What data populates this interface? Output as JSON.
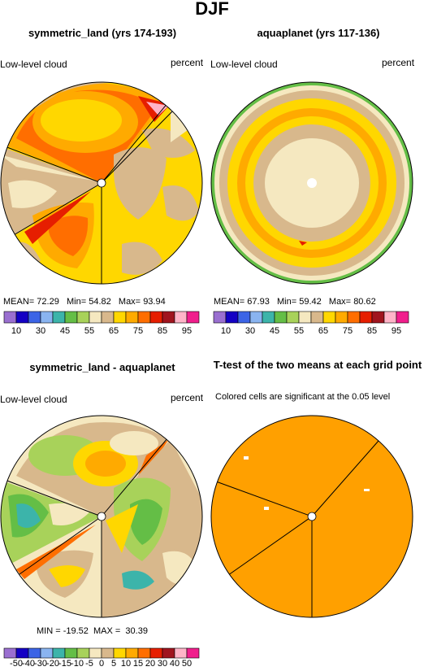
{
  "figure": {
    "title": "DJF"
  },
  "panels": [
    {
      "title": "symmetric_land (yrs 174-193)",
      "left_label": "Low-level cloud",
      "right_label": "percent",
      "stats": {
        "mean_label": "MEAN=",
        "mean": "72.29",
        "min_label": "Min=",
        "min": "54.82",
        "max_label": "Max=",
        "max": "93.94"
      }
    },
    {
      "title": "aquaplanet (yrs 117-136)",
      "left_label": "Low-level cloud",
      "right_label": "percent",
      "stats": {
        "mean_label": "MEAN=",
        "mean": "67.93",
        "min_label": "Min=",
        "min": "59.42",
        "max_label": "Max=",
        "max": "80.62"
      }
    },
    {
      "title": "symmetric_land - aquaplanet",
      "left_label": "Low-level cloud",
      "right_label": "percent",
      "stats_text": "MIN = -19.52  MAX =  30.39"
    },
    {
      "title": "T-test of the two means at each grid point",
      "subtitle": "Colored cells are significant at the 0.05 level"
    }
  ],
  "colorbar_cloud": {
    "colors": [
      "#9a6fd0",
      "#1400c4",
      "#3c64e6",
      "#8ab4f0",
      "#3cb4aa",
      "#64be46",
      "#a8d25a",
      "#f5e8c0",
      "#d8b88c",
      "#ffd700",
      "#ffaa00",
      "#ff6e00",
      "#e61e00",
      "#a0141e",
      "#ffb4c8",
      "#f01e8c"
    ],
    "labels": [
      "10",
      "30",
      "45",
      "55",
      "65",
      "75",
      "85",
      "95"
    ]
  },
  "colorbar_diff": {
    "colors": [
      "#9a6fd0",
      "#1400c4",
      "#3c64e6",
      "#8ab4f0",
      "#3cb4aa",
      "#64be46",
      "#a8d25a",
      "#f5e8c0",
      "#d8b88c",
      "#ffd700",
      "#ffaa00",
      "#ff6e00",
      "#e61e00",
      "#a0141e",
      "#ffb4c8",
      "#f01e8c"
    ],
    "labels": [
      "-50",
      "-40",
      "-30",
      "-20",
      "-15",
      "-10",
      "-5",
      "0",
      "5",
      "10",
      "15",
      "20",
      "30",
      "40",
      "50"
    ]
  }
}
